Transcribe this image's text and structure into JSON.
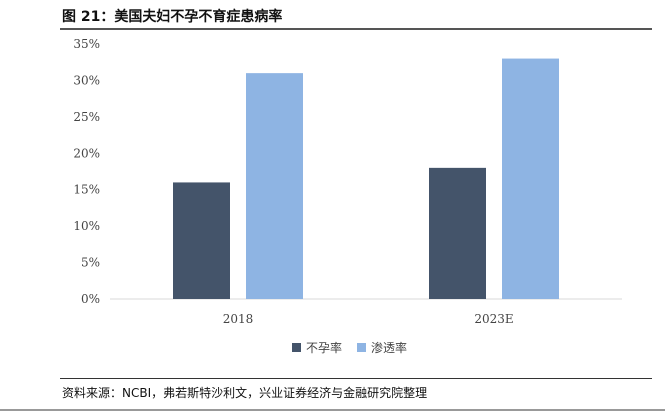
{
  "title": "图 21：美国夫妇不孕不育症患病率",
  "source": "资料来源：NCBI，弗若斯特沙利文，兴业证券经济与金融研究院整理",
  "chart_data": {
    "type": "bar",
    "categories": [
      "2018",
      "2023E"
    ],
    "series": [
      {
        "name": "不孕率",
        "values": [
          16,
          18
        ],
        "color": "#44546a"
      },
      {
        "name": "渗透率",
        "values": [
          31,
          33
        ],
        "color": "#8eb4e3"
      }
    ],
    "ylim": [
      0,
      35
    ],
    "yticks": [
      0,
      5,
      10,
      15,
      20,
      25,
      30,
      35
    ],
    "ytick_labels": [
      "0%",
      "5%",
      "10%",
      "15%",
      "20%",
      "25%",
      "30%",
      "35%"
    ],
    "grid": false,
    "legend_position": "bottom"
  }
}
